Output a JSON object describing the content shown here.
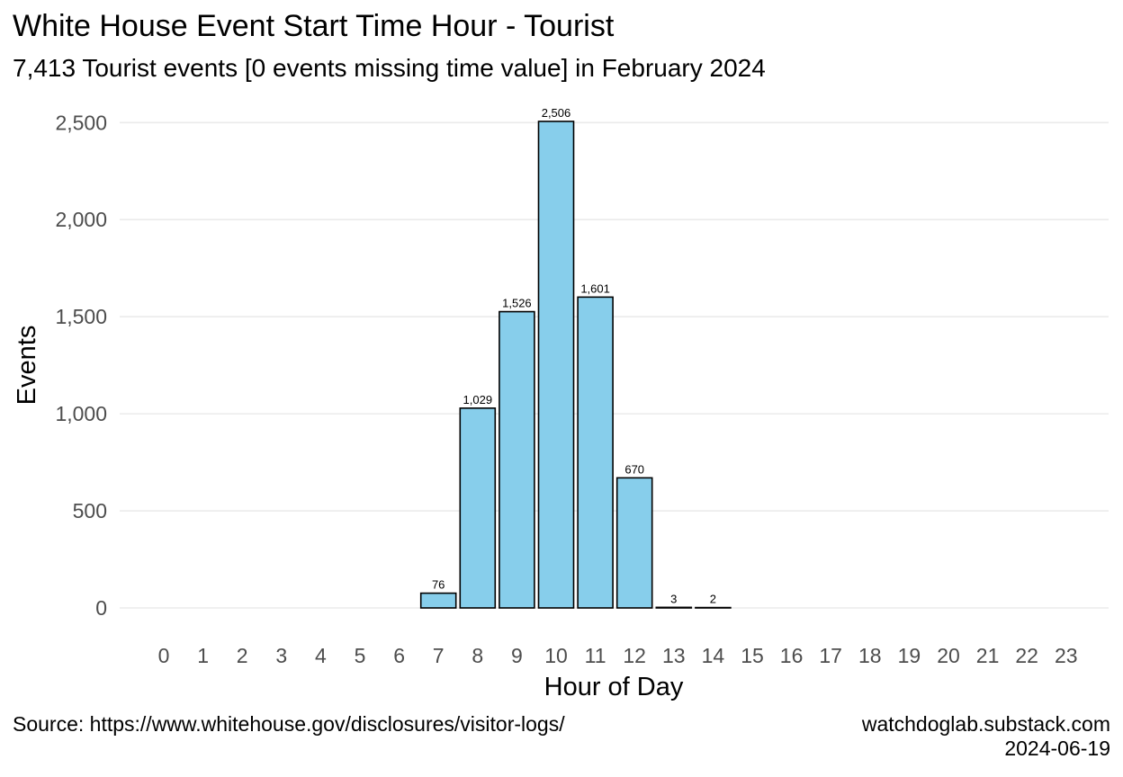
{
  "chart_data": {
    "type": "bar",
    "title": "White House Event Start Time Hour - Tourist",
    "subtitle": "7,413 Tourist events [0 events missing time value]  in February 2024",
    "xlabel": "Hour of Day",
    "ylabel": "Events",
    "categories": [
      "0",
      "1",
      "2",
      "3",
      "4",
      "5",
      "6",
      "7",
      "8",
      "9",
      "10",
      "11",
      "12",
      "13",
      "14",
      "15",
      "16",
      "17",
      "18",
      "19",
      "20",
      "21",
      "22",
      "23"
    ],
    "values": [
      0,
      0,
      0,
      0,
      0,
      0,
      0,
      76,
      1029,
      1526,
      2506,
      1601,
      670,
      3,
      2,
      0,
      0,
      0,
      0,
      0,
      0,
      0,
      0,
      0
    ],
    "data_labels": [
      "",
      "",
      "",
      "",
      "",
      "",
      "",
      "76",
      "1,029",
      "1,526",
      "2,506",
      "1,601",
      "670",
      "3",
      "2",
      "",
      "",
      "",
      "",
      "",
      "",
      "",
      "",
      ""
    ],
    "ylim": [
      0,
      2506
    ],
    "yticks": [
      0,
      500,
      1000,
      1500,
      2000,
      2500
    ],
    "ytick_labels": [
      "0",
      "500",
      "1,000",
      "1,500",
      "2,000",
      "2,500"
    ],
    "grid": "horizontal",
    "bar_color": "#87CEEB",
    "bar_outline": "#000000",
    "grid_color": "#EBEBEB"
  },
  "caption": {
    "source": "Source: https://www.whitehouse.gov/disclosures/visitor-logs/",
    "site": "watchdoglab.substack.com",
    "date": "2024-06-19"
  }
}
